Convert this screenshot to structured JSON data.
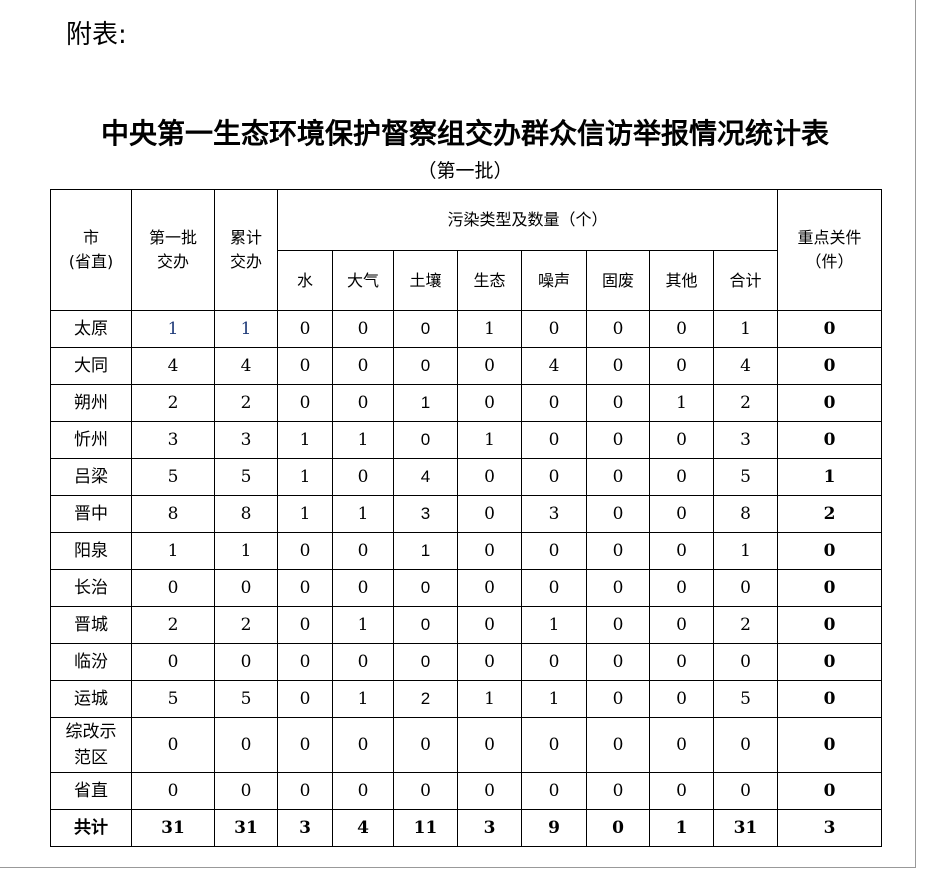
{
  "appendix_label": "附表:",
  "title": "中央第一生态环境保护督察组交办群众信访举报情况统计表",
  "subtitle": "（第一批）",
  "table": {
    "headers": {
      "city": "市\n(省直)",
      "first_batch": "第一批\n交办",
      "cumulative": "累计\n交办",
      "pollution_group": "污染类型及数量（个）",
      "pollution_types": [
        "水",
        "大气",
        "土壤",
        "生态",
        "噪声",
        "固废",
        "其他",
        "合计"
      ],
      "key_cases": "重点关件\n（件）"
    },
    "rows": [
      {
        "city": "太原",
        "values": [
          1,
          1,
          0,
          0,
          0,
          1,
          0,
          0,
          0,
          1,
          0
        ]
      },
      {
        "city": "大同",
        "values": [
          4,
          4,
          0,
          0,
          0,
          0,
          4,
          0,
          0,
          4,
          0
        ]
      },
      {
        "city": "朔州",
        "values": [
          2,
          2,
          0,
          0,
          1,
          0,
          0,
          0,
          1,
          2,
          0
        ]
      },
      {
        "city": "忻州",
        "values": [
          3,
          3,
          1,
          1,
          0,
          1,
          0,
          0,
          0,
          3,
          0
        ]
      },
      {
        "city": "吕梁",
        "values": [
          5,
          5,
          1,
          0,
          4,
          0,
          0,
          0,
          0,
          5,
          1
        ]
      },
      {
        "city": "晋中",
        "values": [
          8,
          8,
          1,
          1,
          3,
          0,
          3,
          0,
          0,
          8,
          2
        ]
      },
      {
        "city": "阳泉",
        "values": [
          1,
          1,
          0,
          0,
          1,
          0,
          0,
          0,
          0,
          1,
          0
        ]
      },
      {
        "city": "长治",
        "values": [
          0,
          0,
          0,
          0,
          0,
          0,
          0,
          0,
          0,
          0,
          0
        ]
      },
      {
        "city": "晋城",
        "values": [
          2,
          2,
          0,
          1,
          0,
          0,
          1,
          0,
          0,
          2,
          0
        ]
      },
      {
        "city": "临汾",
        "values": [
          0,
          0,
          0,
          0,
          0,
          0,
          0,
          0,
          0,
          0,
          0
        ]
      },
      {
        "city": "运城",
        "values": [
          5,
          5,
          0,
          1,
          2,
          1,
          1,
          0,
          0,
          5,
          0
        ]
      },
      {
        "city": "综改示\n范区",
        "values": [
          0,
          0,
          0,
          0,
          0,
          0,
          0,
          0,
          0,
          0,
          0
        ]
      },
      {
        "city": "省直",
        "values": [
          0,
          0,
          0,
          0,
          0,
          0,
          0,
          0,
          0,
          0,
          0
        ]
      }
    ],
    "total": {
      "city": "共计",
      "values": [
        31,
        31,
        3,
        4,
        11,
        3,
        9,
        0,
        1,
        31,
        3
      ]
    }
  }
}
